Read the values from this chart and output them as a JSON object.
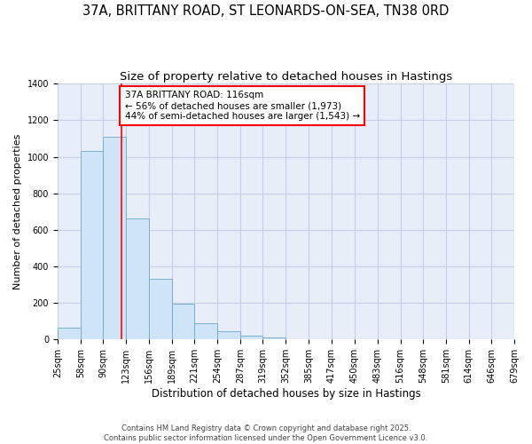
{
  "title": "37A, BRITTANY ROAD, ST LEONARDS-ON-SEA, TN38 0RD",
  "subtitle": "Size of property relative to detached houses in Hastings",
  "xlabel": "Distribution of detached houses by size in Hastings",
  "ylabel": "Number of detached properties",
  "bin_edges": [
    25,
    58,
    90,
    123,
    156,
    189,
    221,
    254,
    287,
    319,
    352,
    385,
    417,
    450,
    483,
    516,
    548,
    581,
    614,
    646,
    679
  ],
  "bar_heights": [
    65,
    1030,
    1110,
    660,
    330,
    195,
    90,
    47,
    22,
    10,
    3,
    0,
    0,
    0,
    0,
    0,
    0,
    0,
    0,
    0
  ],
  "bar_color": "#d0e4f7",
  "bar_edge_color": "#7aaed0",
  "red_line_x": 116,
  "annotation_text": "37A BRITTANY ROAD: 116sqm\n← 56% of detached houses are smaller (1,973)\n44% of semi-detached houses are larger (1,543) →",
  "ylim": [
    0,
    1400
  ],
  "yticks": [
    0,
    200,
    400,
    600,
    800,
    1000,
    1200,
    1400
  ],
  "bg_color": "#ffffff",
  "plot_bg_color": "#e8eef8",
  "grid_color": "#c5d0e8",
  "footer1": "Contains HM Land Registry data © Crown copyright and database right 2025.",
  "footer2": "Contains public sector information licensed under the Open Government Licence v3.0.",
  "title_fontsize": 10.5,
  "subtitle_fontsize": 9.5,
  "tick_fontsize": 7,
  "xlabel_fontsize": 8.5,
  "ylabel_fontsize": 8,
  "annotation_fontsize": 7.5,
  "footer_fontsize": 6
}
